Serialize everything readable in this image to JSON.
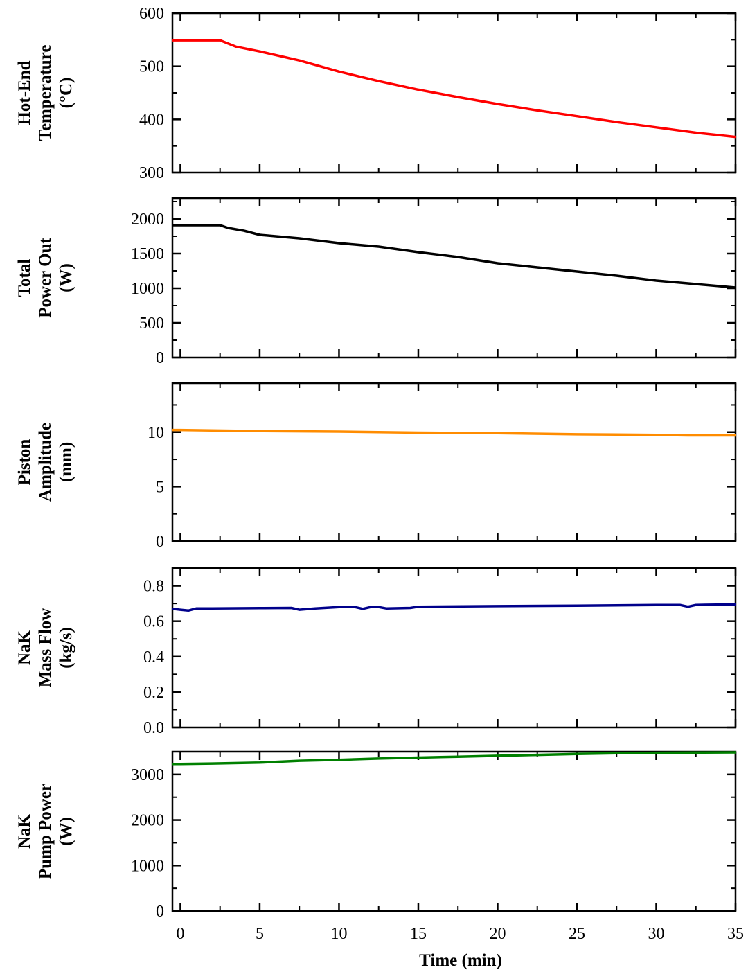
{
  "chart_data": [
    {
      "type": "line",
      "ylabel_lines": [
        "Hot-End",
        "Temperature",
        "(°C)"
      ],
      "ylim": [
        300,
        600
      ],
      "yticks": [
        300,
        400,
        500,
        600
      ],
      "ytick_labels": [
        "300",
        "400",
        "500",
        "600"
      ],
      "ytick_minor_step": 50,
      "xlim": [
        -0.5,
        35
      ],
      "color": "#ff0000",
      "series": [
        {
          "x": [
            -0.5,
            0,
            1,
            2,
            2.5,
            3,
            3.5,
            5,
            7.5,
            10,
            12.5,
            15,
            17.5,
            20,
            22.5,
            25,
            27.5,
            30,
            32.5,
            35
          ],
          "y": [
            549,
            549,
            549,
            549,
            549,
            543,
            537,
            528,
            511,
            490,
            472,
            456,
            442,
            429,
            417,
            406,
            395,
            385,
            375,
            367
          ]
        }
      ]
    },
    {
      "type": "line",
      "ylabel_lines": [
        "Total",
        "Power Out",
        "(W)"
      ],
      "ylim": [
        0,
        2300
      ],
      "yticks": [
        0,
        500,
        1000,
        1500,
        2000
      ],
      "ytick_labels": [
        "0",
        "500",
        "1000",
        "1500",
        "2000"
      ],
      "ytick_minor_step": 250,
      "xlim": [
        -0.5,
        35
      ],
      "color": "#000000",
      "series": [
        {
          "x": [
            -0.5,
            0,
            1,
            2,
            2.5,
            3,
            4,
            5,
            7.5,
            10,
            12.5,
            15,
            17.5,
            20,
            22.5,
            25,
            27.5,
            30,
            32.5,
            35
          ],
          "y": [
            1910,
            1910,
            1910,
            1910,
            1910,
            1870,
            1830,
            1770,
            1720,
            1650,
            1600,
            1520,
            1450,
            1360,
            1300,
            1240,
            1180,
            1110,
            1060,
            1010
          ]
        }
      ]
    },
    {
      "type": "line",
      "ylabel_lines": [
        "Piston",
        "Amplitude",
        "(mm)"
      ],
      "ylim": [
        0,
        14.5
      ],
      "yticks": [
        0,
        5,
        10
      ],
      "ytick_labels": [
        "0",
        "5",
        "10"
      ],
      "ytick_minor_step": 2.5,
      "xlim": [
        -0.5,
        35
      ],
      "color": "#ff8c00",
      "series": [
        {
          "x": [
            -0.5,
            0,
            5,
            10,
            15,
            20,
            25,
            30,
            32,
            35
          ],
          "y": [
            10.2,
            10.2,
            10.1,
            10.05,
            9.95,
            9.9,
            9.8,
            9.75,
            9.7,
            9.7
          ]
        }
      ]
    },
    {
      "type": "line",
      "ylabel_lines": [
        "NaK",
        "Mass Flow",
        "(kg/s)"
      ],
      "ylim": [
        0,
        0.9
      ],
      "yticks": [
        0,
        0.2,
        0.4,
        0.6,
        0.8
      ],
      "ytick_labels": [
        "0.0",
        "0.2",
        "0.4",
        "0.6",
        "0.8"
      ],
      "ytick_minor_step": 0.1,
      "xlim": [
        -0.5,
        35
      ],
      "color": "#00008b",
      "series": [
        {
          "x": [
            -0.5,
            0,
            0.5,
            1,
            2,
            5,
            7,
            7.5,
            8.5,
            10,
            11,
            11.5,
            12,
            12.5,
            13,
            14.5,
            15,
            20,
            25,
            30,
            31.5,
            32,
            32.5,
            35
          ],
          "y": [
            0.67,
            0.665,
            0.66,
            0.672,
            0.672,
            0.674,
            0.675,
            0.665,
            0.672,
            0.68,
            0.68,
            0.67,
            0.68,
            0.68,
            0.672,
            0.675,
            0.682,
            0.685,
            0.688,
            0.692,
            0.692,
            0.682,
            0.692,
            0.695
          ]
        }
      ]
    },
    {
      "type": "line",
      "ylabel_lines": [
        "NaK",
        "Pump Power",
        "(W)"
      ],
      "ylim": [
        0,
        3500
      ],
      "yticks": [
        0,
        1000,
        2000,
        3000
      ],
      "ytick_labels": [
        "0",
        "1000",
        "2000",
        "3000"
      ],
      "ytick_minor_step": 500,
      "xlim": [
        -0.5,
        35
      ],
      "color": "#008000",
      "series": [
        {
          "x": [
            -0.5,
            0,
            2,
            5,
            7.5,
            10,
            12.5,
            15,
            17.5,
            20,
            22.5,
            25,
            27.5,
            30,
            32.5,
            35
          ],
          "y": [
            3230,
            3230,
            3240,
            3260,
            3300,
            3320,
            3350,
            3370,
            3390,
            3410,
            3430,
            3450,
            3465,
            3475,
            3480,
            3485
          ]
        }
      ]
    }
  ],
  "x_axis": {
    "label": "Time (min)",
    "ticks": [
      0,
      5,
      10,
      15,
      20,
      25,
      30,
      35
    ],
    "tick_labels": [
      "0",
      "5",
      "10",
      "15",
      "20",
      "25",
      "30",
      "35"
    ],
    "minor_step": 2.5
  }
}
